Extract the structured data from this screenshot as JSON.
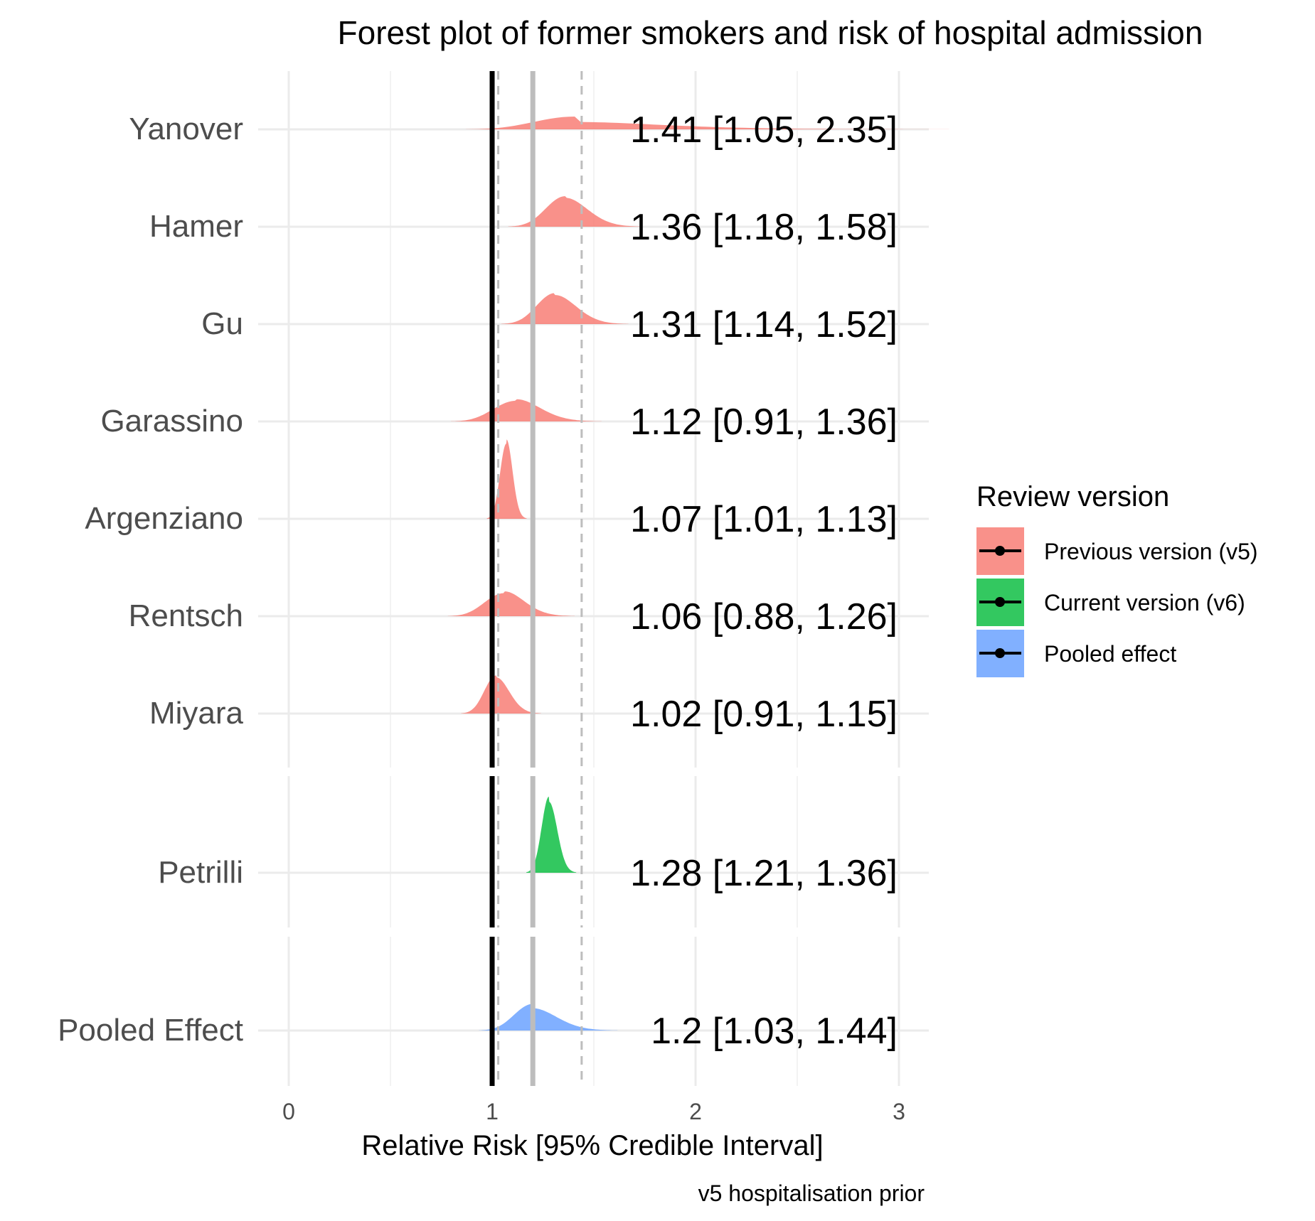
{
  "chart_data": {
    "type": "forest",
    "title": "Forest plot of former smokers and risk of hospital admission",
    "xlabel": "Relative Risk [95% Credible Interval]",
    "caption": "v5 hospitalisation prior",
    "xlim": [
      0,
      3
    ],
    "x_ticks": [
      "0",
      "1",
      "2",
      "3"
    ],
    "x_tick_values": [
      0,
      1,
      2,
      3
    ],
    "grid": true,
    "legend": {
      "title": "Review version",
      "position": "right",
      "entries": [
        {
          "label": "Previous version (v5)",
          "color": "#F8766D"
        },
        {
          "label": "Current version (v6)",
          "color": "#00BA38"
        },
        {
          "label": "Pooled effect",
          "color": "#619CFF"
        }
      ]
    },
    "reference_lines": {
      "null_effect": 1,
      "pooled_estimate": 1.2,
      "pooled_interval": [
        1.03,
        1.44
      ]
    },
    "panels": [
      {
        "group": "Previous version (v5)",
        "studies": [
          {
            "study": "Yanover",
            "estimate": 1.41,
            "lower": 1.05,
            "upper": 2.35,
            "label": "1.41 [1.05, 2.35]"
          },
          {
            "study": "Hamer",
            "estimate": 1.36,
            "lower": 1.18,
            "upper": 1.58,
            "label": "1.36 [1.18, 1.58]"
          },
          {
            "study": "Gu",
            "estimate": 1.31,
            "lower": 1.14,
            "upper": 1.52,
            "label": "1.31 [1.14, 1.52]"
          },
          {
            "study": "Garassino",
            "estimate": 1.12,
            "lower": 0.91,
            "upper": 1.36,
            "label": "1.12 [0.91, 1.36]"
          },
          {
            "study": "Argenziano",
            "estimate": 1.07,
            "lower": 1.01,
            "upper": 1.13,
            "label": "1.07 [1.01, 1.13]"
          },
          {
            "study": "Rentsch",
            "estimate": 1.06,
            "lower": 0.88,
            "upper": 1.26,
            "label": "1.06 [0.88, 1.26]"
          },
          {
            "study": "Miyara",
            "estimate": 1.02,
            "lower": 0.91,
            "upper": 1.15,
            "label": "1.02 [0.91, 1.15]"
          }
        ]
      },
      {
        "group": "Current version (v6)",
        "studies": [
          {
            "study": "Petrilli",
            "estimate": 1.28,
            "lower": 1.21,
            "upper": 1.36,
            "label": "1.28 [1.21, 1.36]"
          }
        ]
      },
      {
        "group": "Pooled effect",
        "studies": [
          {
            "study": "Pooled Effect",
            "estimate": 1.2,
            "lower": 1.03,
            "upper": 1.44,
            "label": "1.2 [1.03, 1.44]"
          }
        ]
      }
    ]
  }
}
